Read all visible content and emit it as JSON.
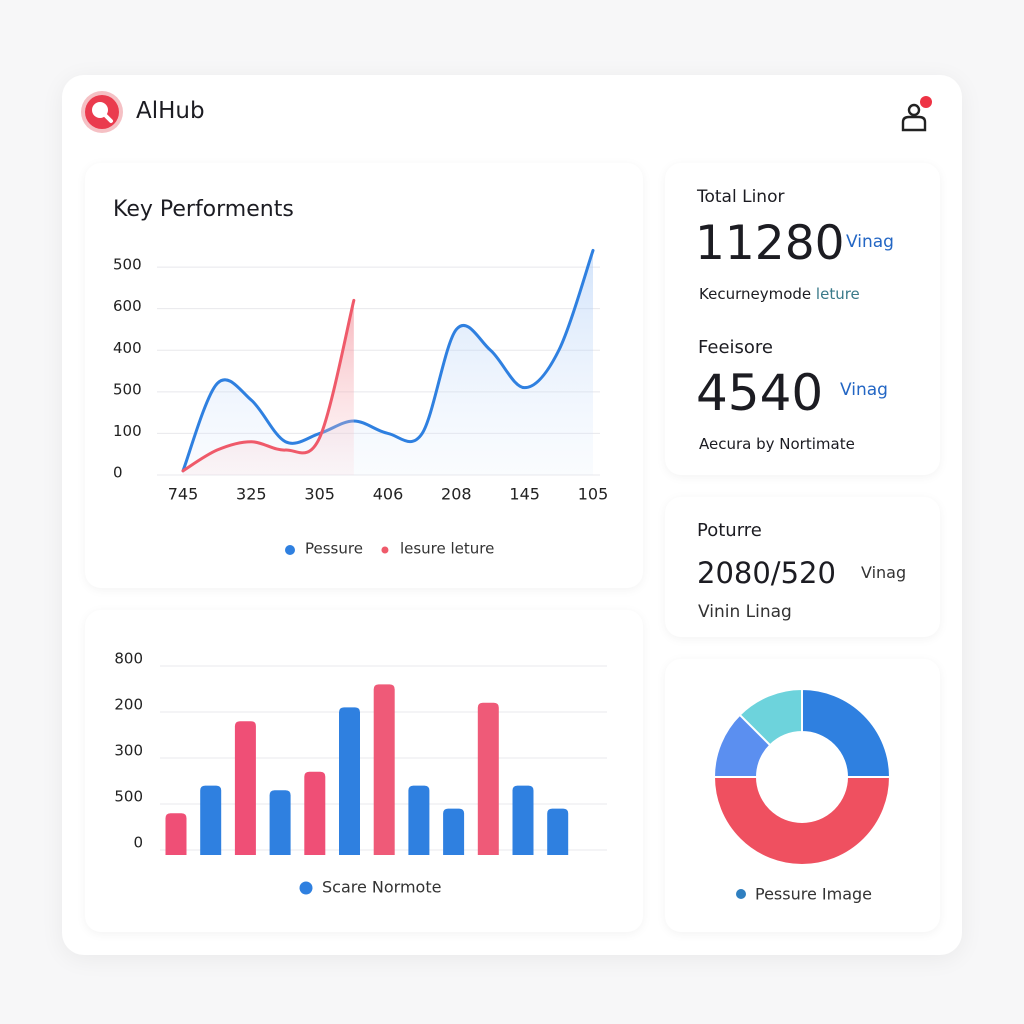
{
  "header": {
    "title": "AlHub"
  },
  "line_card": {
    "title": "Key Performents",
    "chart_data": {
      "type": "line",
      "categories": [
        "745",
        null,
        "325",
        null,
        "305",
        null,
        "406",
        null,
        "208",
        null,
        "145",
        null,
        "105"
      ],
      "series": [
        {
          "name": "Pessure",
          "color": "#2f80e0",
          "values": [
            0.1,
            2.2,
            1.8,
            0.8,
            1.0,
            1.3,
            1.0,
            1.0,
            3.5,
            3.0,
            2.1,
            3.0,
            5.4
          ]
        },
        {
          "name": "lesure leture",
          "color": "#ef5a6a",
          "values": [
            0.1,
            0.6,
            0.8,
            0.6,
            0.9,
            4.2,
            null,
            null,
            null,
            null,
            null,
            null,
            null
          ]
        }
      ],
      "ylim": [
        0,
        5.7
      ],
      "yticks": [
        {
          "value": 5,
          "label": "500"
        },
        {
          "value": 4,
          "label": "600"
        },
        {
          "value": 3,
          "label": "400"
        },
        {
          "value": 2,
          "label": "500"
        },
        {
          "value": 1,
          "label": "100"
        },
        0
      ],
      "grid": true
    }
  },
  "bar_card": {
    "chart_data": {
      "type": "bar",
      "values": [
        0.8,
        1.4,
        2.8,
        1.3,
        1.7,
        3.1,
        3.6,
        1.4,
        0.9,
        3.2,
        1.4,
        0.9
      ],
      "colors": [
        "#ef4f76",
        "#2f80e0",
        "#ef4f76",
        "#2f80e0",
        "#ef4f76",
        "#2f80e0",
        "#ef5a78",
        "#2f80e0",
        "#2f80e0",
        "#ef5a78",
        "#2f80e0",
        "#2f80e0"
      ],
      "ylim": [
        0,
        4.3
      ],
      "yticks": [
        {
          "value": 4,
          "label": "800"
        },
        {
          "value": 3,
          "label": "200"
        },
        {
          "value": 2,
          "label": "300"
        },
        {
          "value": 1,
          "label": "500"
        },
        0
      ],
      "grid": true,
      "legend": {
        "label": "Scare Normote",
        "color": "#2f80e0"
      }
    }
  },
  "stats_card": {
    "items": [
      {
        "label": "Total Linor",
        "value": "11280",
        "tag": "Vinag",
        "note": "Kecurneymode",
        "note_accent": "leture"
      },
      {
        "label": "Feeisore",
        "value": "4540",
        "tag": "Vinag",
        "note": "Aecura by Nortimate"
      }
    ]
  },
  "ratio_card": {
    "label": "Poturre",
    "value": "2080/520",
    "tag": "Vinag",
    "note": "Vinin Linag"
  },
  "donut_card": {
    "chart_data": {
      "type": "pie",
      "donut": true,
      "values": [
        25,
        50,
        12.5,
        12.5
      ],
      "colors": [
        "#2f80e0",
        "#ef5060",
        "#5b8ff0",
        "#6dd3dc"
      ],
      "legend": {
        "label": "Pessure Image",
        "color": "#2f7fc0"
      }
    }
  }
}
